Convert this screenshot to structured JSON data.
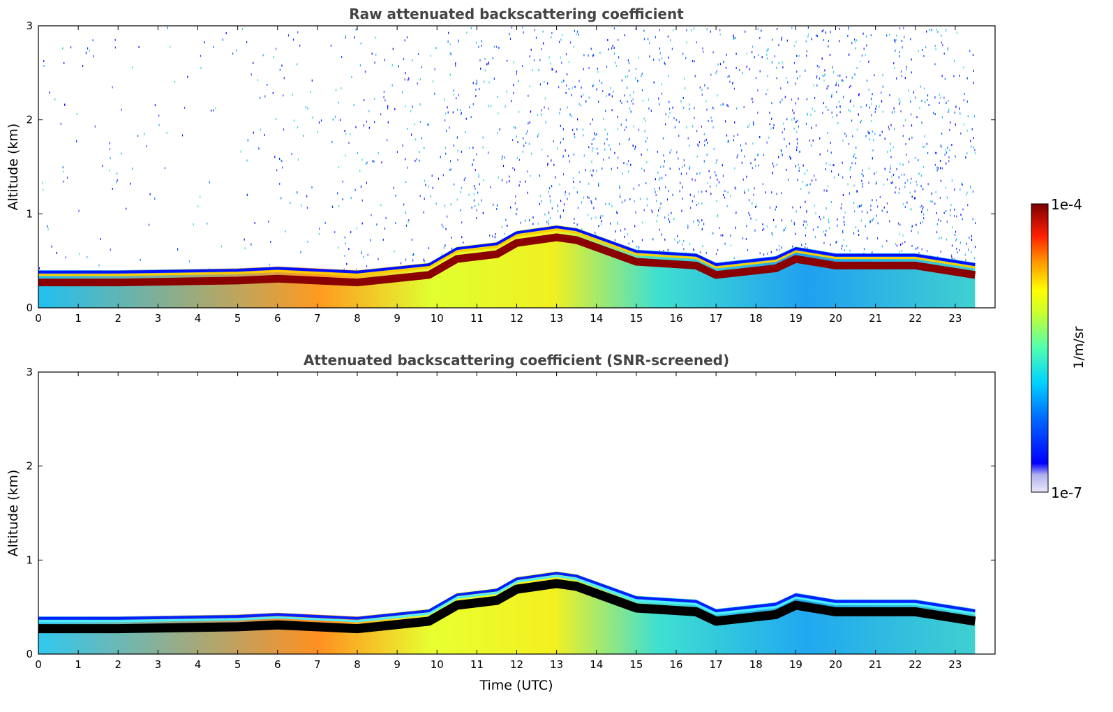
{
  "chart_data": [
    {
      "type": "heatmap",
      "title": "Raw attenuated backscattering coefficient",
      "xlabel": "",
      "ylabel": "Altitude (km)",
      "xlim": [
        0,
        24
      ],
      "ylim": [
        0,
        3
      ],
      "xticks": [
        0,
        1,
        2,
        3,
        4,
        5,
        6,
        7,
        8,
        9,
        10,
        11,
        12,
        13,
        14,
        15,
        16,
        17,
        18,
        19,
        20,
        21,
        22,
        23
      ],
      "yticks": [
        0,
        1,
        2,
        3
      ],
      "data_end_hour": 23.5,
      "boundary_layer_top_km": [
        {
          "x": 0,
          "y": 0.4
        },
        {
          "x": 2,
          "y": 0.4
        },
        {
          "x": 5,
          "y": 0.42
        },
        {
          "x": 6,
          "y": 0.44
        },
        {
          "x": 8,
          "y": 0.4
        },
        {
          "x": 9.8,
          "y": 0.48
        },
        {
          "x": 10.5,
          "y": 0.65
        },
        {
          "x": 11.5,
          "y": 0.7
        },
        {
          "x": 12,
          "y": 0.82
        },
        {
          "x": 13,
          "y": 0.88
        },
        {
          "x": 13.5,
          "y": 0.85
        },
        {
          "x": 15,
          "y": 0.62
        },
        {
          "x": 16.5,
          "y": 0.58
        },
        {
          "x": 17,
          "y": 0.48
        },
        {
          "x": 18.5,
          "y": 0.55
        },
        {
          "x": 19,
          "y": 0.65
        },
        {
          "x": 20,
          "y": 0.58
        },
        {
          "x": 22,
          "y": 0.58
        },
        {
          "x": 23.5,
          "y": 0.48
        }
      ],
      "noise_density_by_hour": [
        {
          "x": 0,
          "v": 0.1
        },
        {
          "x": 6,
          "v": 0.15
        },
        {
          "x": 10,
          "v": 0.35
        },
        {
          "x": 13,
          "v": 0.55
        },
        {
          "x": 18,
          "v": 0.7
        },
        {
          "x": 23.5,
          "v": 0.75
        }
      ]
    },
    {
      "type": "heatmap",
      "title": "Attenuated backscattering coefficient (SNR-screened)",
      "xlabel": "Time (UTC)",
      "ylabel": "Altitude (km)",
      "xlim": [
        0,
        24
      ],
      "ylim": [
        0,
        3
      ],
      "xticks": [
        0,
        1,
        2,
        3,
        4,
        5,
        6,
        7,
        8,
        9,
        10,
        11,
        12,
        13,
        14,
        15,
        16,
        17,
        18,
        19,
        20,
        21,
        22,
        23
      ],
      "yticks": [
        0,
        1,
        2,
        3
      ],
      "data_end_hour": 23.5,
      "saturated_color": "#000000"
    }
  ],
  "colorbar": {
    "label": "1/m/sr",
    "max_label": "1e-4",
    "min_label": "1e-7",
    "colors": [
      "#e6e6fa",
      "#0000ff",
      "#00c8ff",
      "#80ff80",
      "#ffff00",
      "#ff8000",
      "#ff0000",
      "#800000"
    ]
  }
}
